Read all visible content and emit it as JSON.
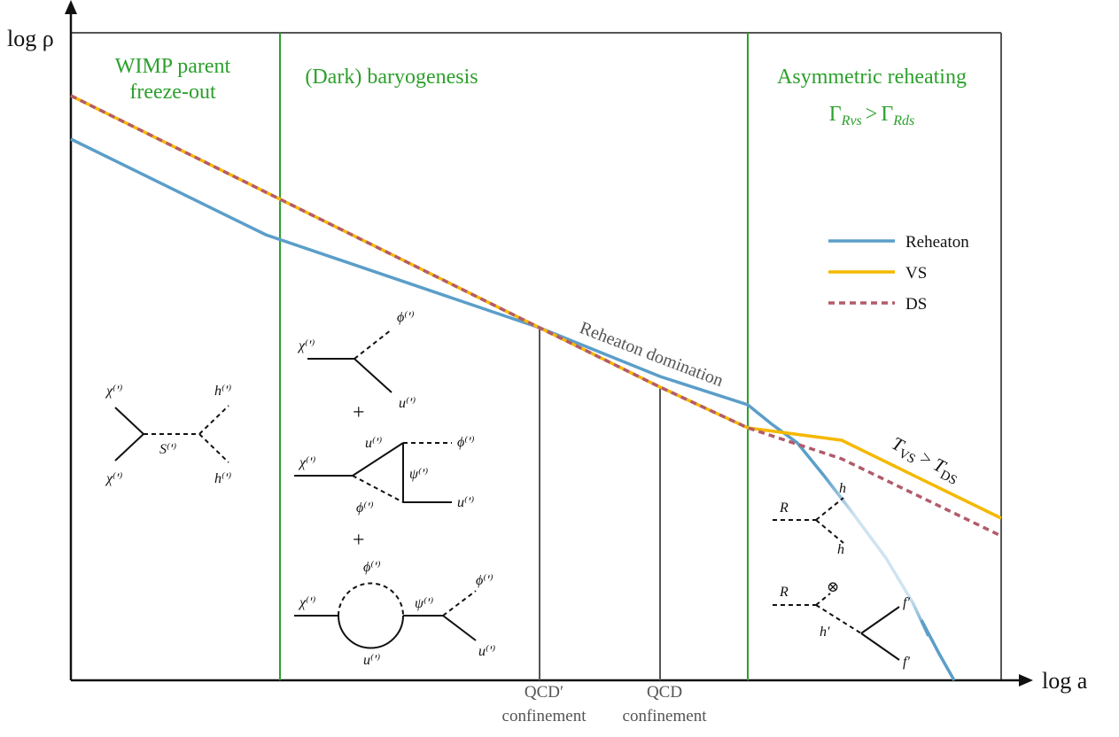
{
  "axes": {
    "y_label": "log ρ",
    "x_label": "log a"
  },
  "regions": {
    "wimp": [
      "WIMP parent",
      "freeze-out"
    ],
    "baryo": "(Dark) baryogenesis",
    "asym_title": "Asymmetric reheating",
    "asym_condition": {
      "gamma": "Γ",
      "sub_vs": "Rvs",
      "gt": ">",
      "sub_ds": "Rds"
    }
  },
  "events": {
    "qcd_prime": [
      "QCD′",
      "confinement"
    ],
    "qcd": [
      "QCD",
      "confinement"
    ]
  },
  "annotations": {
    "reheaton_domination": "Reheaton domination",
    "temperature": {
      "t": "T",
      "vs": "VS",
      "gt": ">",
      "ds": "DS"
    }
  },
  "legend": {
    "reheaton": "Reheaton",
    "vs": "VS",
    "ds": "DS"
  },
  "colors": {
    "reheaton": "#5b9ec9",
    "vs": "#f5b800",
    "ds": "#b25b6b",
    "region_line": "#2ca02c",
    "event_line": "#555555"
  },
  "feynman": {
    "chi": "χ⁽′⁾",
    "s": "S⁽′⁾",
    "h": "h⁽′⁾",
    "phi": "ϕ⁽′⁾",
    "u": "u⁽′⁾",
    "psi": "ψ⁽′⁾",
    "plus": "+",
    "R": "R",
    "h_bare": "h",
    "h_prime": "h′",
    "f_prime": "f′",
    "otimes": "⊗"
  }
}
